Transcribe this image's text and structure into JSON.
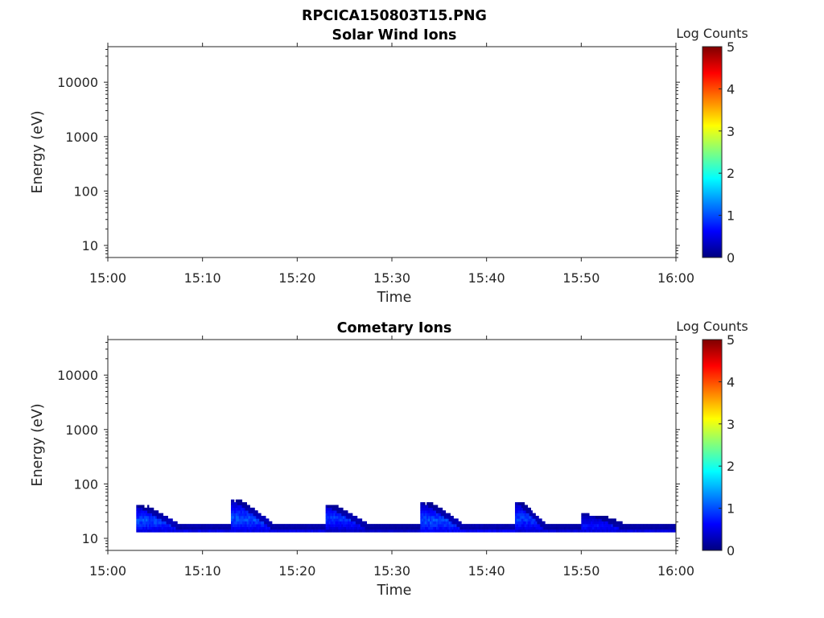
{
  "figure_title": "RPCICA150803T15.PNG",
  "colors": {
    "colormap": [
      "#00007f",
      "#0000ff",
      "#007fff",
      "#00ffff",
      "#7fff7f",
      "#ffff00",
      "#ff7f00",
      "#ff0000",
      "#7f0000"
    ],
    "axis": "#262626",
    "background": "#ffffff"
  },
  "chart_data": [
    {
      "type": "heatmap",
      "title": "Solar Wind Ions",
      "xlabel": "Time",
      "ylabel": "Energy (eV)",
      "x_range": [
        "15:00",
        "16:00"
      ],
      "x_ticks": [
        "15:00",
        "15:10",
        "15:20",
        "15:30",
        "15:40",
        "15:50",
        "16:00"
      ],
      "y_scale": "log",
      "y_range": [
        6,
        45000
      ],
      "y_ticks": [
        10,
        100,
        1000,
        10000
      ],
      "y_tick_labels": [
        "10",
        "100",
        "1000",
        "10000"
      ],
      "colorbar": {
        "label": "Log Counts",
        "range": [
          0,
          5
        ],
        "ticks": [
          "0",
          "1",
          "2",
          "3",
          "4",
          "5"
        ]
      },
      "grid": false,
      "data": []
    },
    {
      "type": "heatmap",
      "title": "Cometary Ions",
      "xlabel": "Time",
      "ylabel": "Energy (eV)",
      "x_range": [
        "15:00",
        "16:00"
      ],
      "x_ticks": [
        "15:00",
        "15:10",
        "15:20",
        "15:30",
        "15:40",
        "15:50",
        "16:00"
      ],
      "y_scale": "log",
      "y_range": [
        6,
        45000
      ],
      "y_ticks": [
        10,
        100,
        1000,
        10000
      ],
      "y_tick_labels": [
        "10",
        "100",
        "1000",
        "10000"
      ],
      "colorbar": {
        "label": "Log Counts",
        "range": [
          0,
          5
        ],
        "ticks": [
          "0",
          "1",
          "2",
          "3",
          "4",
          "5"
        ]
      },
      "grid": false,
      "data": [
        {
          "t_start": "15:03",
          "t_end": "15:13",
          "e_low": 13,
          "e_high": 38,
          "peak_energy": 20,
          "max_log_counts": 1.2
        },
        {
          "t_start": "15:13",
          "t_end": "15:23",
          "e_low": 13,
          "e_high": 50,
          "peak_energy": 22,
          "max_log_counts": 1.2
        },
        {
          "t_start": "15:23",
          "t_end": "15:33",
          "e_low": 13,
          "e_high": 38,
          "peak_energy": 22,
          "max_log_counts": 1.1
        },
        {
          "t_start": "15:33",
          "t_end": "15:43",
          "e_low": 13,
          "e_high": 45,
          "peak_energy": 20,
          "max_log_counts": 1.2
        },
        {
          "t_start": "15:43",
          "t_end": "15:50",
          "e_low": 13,
          "e_high": 45,
          "peak_energy": 22,
          "max_log_counts": 1.1
        },
        {
          "t_start": "15:50",
          "t_end": "16:00",
          "e_low": 13,
          "e_high": 30,
          "peak_energy": 16,
          "max_log_counts": 0.8
        }
      ]
    }
  ]
}
